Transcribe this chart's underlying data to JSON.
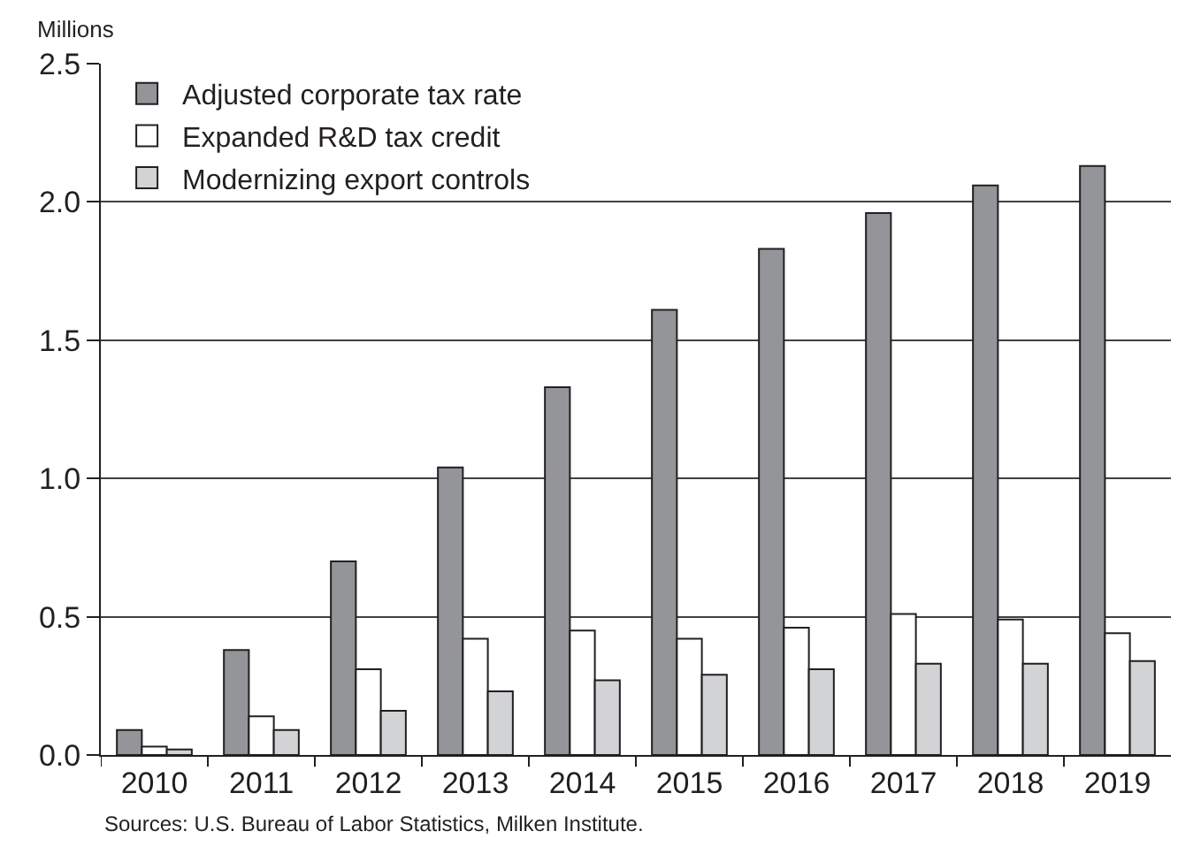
{
  "chart_data": {
    "type": "bar",
    "ylabel": "Millions",
    "categories": [
      "2010",
      "2011",
      "2012",
      "2013",
      "2014",
      "2015",
      "2016",
      "2017",
      "2018",
      "2019"
    ],
    "series": [
      {
        "name": "Adjusted corporate tax rate",
        "color": "#939598",
        "values": [
          0.09,
          0.38,
          0.7,
          1.04,
          1.33,
          1.61,
          1.83,
          1.96,
          2.06,
          2.13
        ]
      },
      {
        "name": "Expanded R&D tax credit",
        "color": "#ffffff",
        "values": [
          0.03,
          0.14,
          0.31,
          0.42,
          0.45,
          0.42,
          0.46,
          0.51,
          0.49,
          0.44
        ]
      },
      {
        "name": "Modernizing export controls",
        "color": "#d1d3d4",
        "values": [
          0.02,
          0.09,
          0.16,
          0.23,
          0.27,
          0.29,
          0.31,
          0.33,
          0.33,
          0.34
        ]
      }
    ],
    "ylim": [
      0,
      2.5
    ],
    "yticks": [
      {
        "value": 0,
        "label": "0.0"
      },
      0.5,
      {
        "value": 1,
        "label": "1.0"
      },
      1.5,
      {
        "value": 2,
        "label": "2.0"
      },
      2.5
    ],
    "grid": "y",
    "legend": "top left",
    "annotations": [
      "Sources: U.S. Bureau of Labor Statistics, Milken Institute."
    ]
  }
}
